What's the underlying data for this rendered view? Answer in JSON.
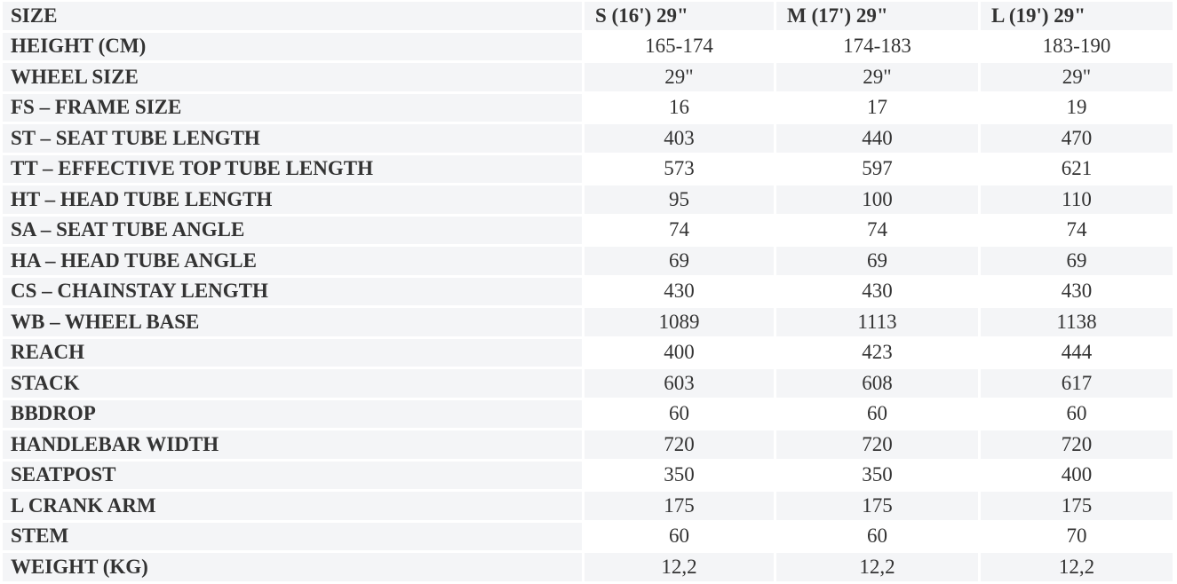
{
  "table": {
    "header": {
      "label": "SIZE",
      "sizes": [
        "S (16') 29\"",
        "M (17') 29\"",
        "L (19') 29\""
      ]
    },
    "rows": [
      {
        "label": "HEIGHT (CM)",
        "values": [
          "165-174",
          "174-183",
          "183-190"
        ]
      },
      {
        "label": "WHEEL SIZE",
        "values": [
          "29\"",
          "29\"",
          "29\""
        ]
      },
      {
        "label": "FS – FRAME SIZE",
        "values": [
          "16",
          "17",
          "19"
        ]
      },
      {
        "label": "ST – SEAT TUBE LENGTH",
        "values": [
          "403",
          "440",
          "470"
        ]
      },
      {
        "label": "TT – EFFECTIVE TOP TUBE LENGTH",
        "values": [
          "573",
          "597",
          "621"
        ]
      },
      {
        "label": "HT – HEAD TUBE LENGTH",
        "values": [
          "95",
          "100",
          "110"
        ]
      },
      {
        "label": "SA – SEAT TUBE ANGLE",
        "values": [
          "74",
          "74",
          "74"
        ]
      },
      {
        "label": "HA – HEAD TUBE ANGLE",
        "values": [
          "69",
          "69",
          "69"
        ]
      },
      {
        "label": "CS – CHAINSTAY LENGTH",
        "values": [
          "430",
          "430",
          "430"
        ]
      },
      {
        "label": "WB – WHEEL BASE",
        "values": [
          "1089",
          "1113",
          "1138"
        ]
      },
      {
        "label": "REACH",
        "values": [
          "400",
          "423",
          "444"
        ]
      },
      {
        "label": "STACK",
        "values": [
          "603",
          "608",
          "617"
        ]
      },
      {
        "label": "BBDROP",
        "values": [
          "60",
          "60",
          "60"
        ]
      },
      {
        "label": "HANDLEBAR WIDTH",
        "values": [
          "720",
          "720",
          "720"
        ]
      },
      {
        "label": "SEATPOST",
        "values": [
          "350",
          "350",
          "400"
        ]
      },
      {
        "label": "L CRANK ARM",
        "values": [
          "175",
          "175",
          "175"
        ]
      },
      {
        "label": "STEM",
        "values": [
          "60",
          "60",
          "70"
        ]
      },
      {
        "label": "WEIGHT (KG)",
        "values": [
          "12,2",
          "12,2",
          "12,2"
        ]
      }
    ]
  }
}
